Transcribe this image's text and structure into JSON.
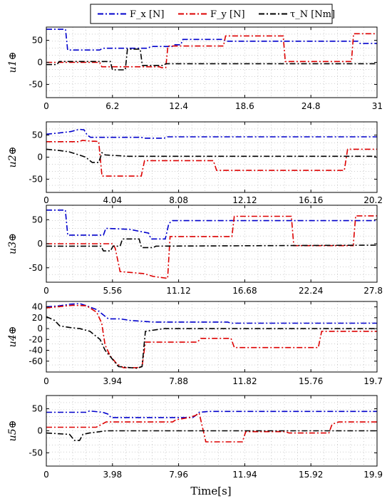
{
  "legend": {
    "items": [
      {
        "label": "F_x [N]",
        "color": "#0000cc"
      },
      {
        "label": "F_y [N]",
        "color": "#dd0000"
      },
      {
        "label": "τ_N [Nm]",
        "color": "#000000"
      }
    ]
  },
  "xlabel": "Time[s]",
  "chart_data": [
    {
      "type": "line",
      "ylabel": "u1⊕",
      "xlim": [
        0,
        31
      ],
      "ylim": [
        -80,
        80
      ],
      "xticks": [
        "0",
        "6.2",
        "12.4",
        "18.6",
        "24.8",
        "31"
      ],
      "yticks": [
        "50",
        "0",
        "-50"
      ],
      "series": [
        {
          "name": "F_x [N]",
          "color": "#0000cc",
          "points": [
            [
              0,
              75
            ],
            [
              1.8,
              75
            ],
            [
              2.0,
              28
            ],
            [
              5.0,
              28
            ],
            [
              5.3,
              32
            ],
            [
              9.5,
              32
            ],
            [
              9.8,
              36
            ],
            [
              11.8,
              36
            ],
            [
              12.0,
              40
            ],
            [
              12.6,
              40
            ],
            [
              12.8,
              52
            ],
            [
              16.6,
              52
            ],
            [
              16.8,
              48
            ],
            [
              29.2,
              48
            ],
            [
              29.4,
              43
            ],
            [
              31,
              43
            ]
          ]
        },
        {
          "name": "F_y [N]",
          "color": "#dd0000",
          "points": [
            [
              0,
              0
            ],
            [
              5.0,
              0
            ],
            [
              5.2,
              -10
            ],
            [
              10.6,
              -10
            ],
            [
              10.8,
              -12
            ],
            [
              11.2,
              -12
            ],
            [
              11.4,
              37
            ],
            [
              12.6,
              37
            ],
            [
              12.8,
              37
            ],
            [
              16.6,
              37
            ],
            [
              16.8,
              60
            ],
            [
              22.2,
              60
            ],
            [
              22.4,
              2
            ],
            [
              28.6,
              2
            ],
            [
              28.8,
              65
            ],
            [
              31,
              65
            ]
          ]
        },
        {
          "name": "τ_N [Nm]",
          "color": "#000000",
          "points": [
            [
              0,
              -5
            ],
            [
              1.0,
              -5
            ],
            [
              1.2,
              2
            ],
            [
              6.0,
              2
            ],
            [
              6.2,
              -17
            ],
            [
              7.4,
              -17
            ],
            [
              7.6,
              30
            ],
            [
              8.8,
              30
            ],
            [
              9.0,
              -7
            ],
            [
              11.0,
              -7
            ],
            [
              11.2,
              -3
            ],
            [
              31,
              -3
            ]
          ]
        }
      ]
    },
    {
      "type": "line",
      "ylabel": "u2⊕",
      "xlim": [
        0,
        20.2
      ],
      "ylim": [
        -80,
        80
      ],
      "xticks": [
        "0",
        "4.04",
        "8.08",
        "12.12",
        "16.16",
        "20.2"
      ],
      "yticks": [
        "50",
        "0",
        "-50"
      ],
      "series": [
        {
          "name": "F_x [N]",
          "color": "#0000cc",
          "points": [
            [
              0,
              52
            ],
            [
              0.8,
              55
            ],
            [
              1.5,
              58
            ],
            [
              2.0,
              63
            ],
            [
              2.3,
              62
            ],
            [
              2.5,
              50
            ],
            [
              2.7,
              45
            ],
            [
              5.8,
              45
            ],
            [
              6.0,
              43
            ],
            [
              7.2,
              43
            ],
            [
              7.4,
              46
            ],
            [
              20.2,
              46
            ]
          ]
        },
        {
          "name": "F_y [N]",
          "color": "#dd0000",
          "points": [
            [
              0,
              35
            ],
            [
              2.0,
              35
            ],
            [
              2.2,
              38
            ],
            [
              2.8,
              36
            ],
            [
              3.0,
              36
            ],
            [
              3.2,
              35
            ],
            [
              3.4,
              -43
            ],
            [
              5.8,
              -43
            ],
            [
              6.0,
              -8
            ],
            [
              10.2,
              -8
            ],
            [
              10.4,
              -30
            ],
            [
              18.2,
              -30
            ],
            [
              18.4,
              18
            ],
            [
              20.2,
              18
            ]
          ]
        },
        {
          "name": "τ_N [Nm]",
          "color": "#000000",
          "points": [
            [
              0,
              18
            ],
            [
              0.8,
              15
            ],
            [
              1.4,
              12
            ],
            [
              2.0,
              5
            ],
            [
              2.4,
              0
            ],
            [
              2.8,
              -12
            ],
            [
              3.2,
              -12
            ],
            [
              3.4,
              10
            ],
            [
              3.6,
              5
            ],
            [
              5.0,
              2
            ],
            [
              20.2,
              2
            ]
          ]
        }
      ]
    },
    {
      "type": "line",
      "ylabel": "u3⊕",
      "xlim": [
        0,
        27.8
      ],
      "ylim": [
        -80,
        80
      ],
      "xticks": [
        "0",
        "5.56",
        "11.12",
        "16.68",
        "22.24",
        "27.8"
      ],
      "yticks": [
        "50",
        "0",
        "-50"
      ],
      "series": [
        {
          "name": "F_x [N]",
          "color": "#0000cc",
          "points": [
            [
              0,
              70
            ],
            [
              1.6,
              70
            ],
            [
              1.8,
              18
            ],
            [
              4.8,
              18
            ],
            [
              5.0,
              32
            ],
            [
              7.0,
              30
            ],
            [
              8.0,
              25
            ],
            [
              8.6,
              22
            ],
            [
              8.8,
              10
            ],
            [
              10.0,
              10
            ],
            [
              10.3,
              42
            ],
            [
              10.6,
              48
            ],
            [
              27.8,
              48
            ]
          ]
        },
        {
          "name": "F_y [N]",
          "color": "#dd0000",
          "points": [
            [
              0,
              0
            ],
            [
              5.6,
              0
            ],
            [
              5.8,
              -10
            ],
            [
              6.2,
              -58
            ],
            [
              8.2,
              -62
            ],
            [
              9.0,
              -68
            ],
            [
              10.2,
              -72
            ],
            [
              10.4,
              15
            ],
            [
              15.6,
              15
            ],
            [
              15.8,
              57
            ],
            [
              20.6,
              57
            ],
            [
              20.8,
              -4
            ],
            [
              25.8,
              -4
            ],
            [
              26.0,
              58
            ],
            [
              27.8,
              58
            ]
          ]
        },
        {
          "name": "τ_N [Nm]",
          "color": "#000000",
          "points": [
            [
              0,
              -5
            ],
            [
              4.6,
              -5
            ],
            [
              4.8,
              -15
            ],
            [
              5.4,
              -15
            ],
            [
              5.6,
              -5
            ],
            [
              6.2,
              -5
            ],
            [
              6.4,
              10
            ],
            [
              7.8,
              10
            ],
            [
              8.0,
              -8
            ],
            [
              9.0,
              -8
            ],
            [
              9.2,
              -5
            ],
            [
              27.8,
              -3
            ]
          ]
        }
      ]
    },
    {
      "type": "line",
      "ylabel": "u4⊕",
      "xlim": [
        0,
        19.7
      ],
      "ylim": [
        -80,
        50
      ],
      "xticks": [
        "0",
        "3.94",
        "7.88",
        "11.82",
        "15.76",
        "19.7"
      ],
      "yticks": [
        "40",
        "20",
        "0",
        "-20",
        "-40",
        "-60"
      ],
      "series": [
        {
          "name": "F_x [N]",
          "color": "#0000cc",
          "points": [
            [
              0,
              40
            ],
            [
              0.8,
              42
            ],
            [
              1.4,
              45
            ],
            [
              2.0,
              46
            ],
            [
              2.4,
              42
            ],
            [
              3.0,
              35
            ],
            [
              3.4,
              25
            ],
            [
              3.7,
              18
            ],
            [
              4.4,
              18
            ],
            [
              5.0,
              15
            ],
            [
              6.4,
              12
            ],
            [
              10.8,
              12
            ],
            [
              11.0,
              10
            ],
            [
              19.7,
              10
            ]
          ]
        },
        {
          "name": "F_y [N]",
          "color": "#dd0000",
          "points": [
            [
              0,
              38
            ],
            [
              0.6,
              40
            ],
            [
              1.6,
              43
            ],
            [
              2.4,
              42
            ],
            [
              3.0,
              30
            ],
            [
              3.3,
              10
            ],
            [
              3.5,
              -30
            ],
            [
              3.8,
              -50
            ],
            [
              4.2,
              -65
            ],
            [
              4.6,
              -72
            ],
            [
              5.4,
              -72
            ],
            [
              5.7,
              -70
            ],
            [
              5.9,
              -25
            ],
            [
              9.0,
              -25
            ],
            [
              9.2,
              -18
            ],
            [
              11.0,
              -18
            ],
            [
              11.2,
              -35
            ],
            [
              16.2,
              -35
            ],
            [
              16.4,
              -5
            ],
            [
              19.7,
              -5
            ]
          ]
        },
        {
          "name": "τ_N [Nm]",
          "color": "#000000",
          "points": [
            [
              0,
              22
            ],
            [
              0.5,
              15
            ],
            [
              0.8,
              5
            ],
            [
              1.4,
              2
            ],
            [
              2.0,
              0
            ],
            [
              2.6,
              -5
            ],
            [
              3.2,
              -20
            ],
            [
              3.5,
              -40
            ],
            [
              3.9,
              -55
            ],
            [
              4.3,
              -70
            ],
            [
              5.4,
              -73
            ],
            [
              5.7,
              -70
            ],
            [
              5.9,
              -5
            ],
            [
              7.0,
              0
            ],
            [
              19.7,
              0
            ]
          ]
        }
      ]
    },
    {
      "type": "line",
      "ylabel": "u5⊕",
      "xlim": [
        0,
        19.9
      ],
      "ylim": [
        -80,
        80
      ],
      "xticks": [
        "0",
        "3.98",
        "7.96",
        "11.94",
        "15.92",
        "19.9"
      ],
      "yticks": [
        "50",
        "0",
        "-50"
      ],
      "series": [
        {
          "name": "F_x [N]",
          "color": "#0000cc",
          "points": [
            [
              0,
              42
            ],
            [
              2.4,
              42
            ],
            [
              2.6,
              45
            ],
            [
              3.4,
              42
            ],
            [
              3.7,
              38
            ],
            [
              3.9,
              30
            ],
            [
              8.8,
              30
            ],
            [
              9.0,
              35
            ],
            [
              9.2,
              42
            ],
            [
              9.8,
              44
            ],
            [
              19.9,
              44
            ]
          ]
        },
        {
          "name": "F_y [N]",
          "color": "#dd0000",
          "points": [
            [
              0,
              8
            ],
            [
              3.0,
              8
            ],
            [
              3.2,
              12
            ],
            [
              3.6,
              20
            ],
            [
              7.6,
              20
            ],
            [
              7.8,
              25
            ],
            [
              8.6,
              30
            ],
            [
              9.0,
              35
            ],
            [
              9.2,
              40
            ],
            [
              9.6,
              -25
            ],
            [
              11.8,
              -25
            ],
            [
              12.0,
              -2
            ],
            [
              14.4,
              -2
            ],
            [
              14.6,
              -5
            ],
            [
              17.0,
              -5
            ],
            [
              17.2,
              15
            ],
            [
              17.6,
              20
            ],
            [
              19.9,
              20
            ]
          ]
        },
        {
          "name": "τ_N [Nm]",
          "color": "#000000",
          "points": [
            [
              0,
              -5
            ],
            [
              1.4,
              -8
            ],
            [
              1.7,
              -22
            ],
            [
              2.0,
              -22
            ],
            [
              2.2,
              -8
            ],
            [
              2.6,
              -5
            ],
            [
              3.0,
              -3
            ],
            [
              3.6,
              0
            ],
            [
              19.9,
              0
            ]
          ]
        }
      ]
    }
  ]
}
